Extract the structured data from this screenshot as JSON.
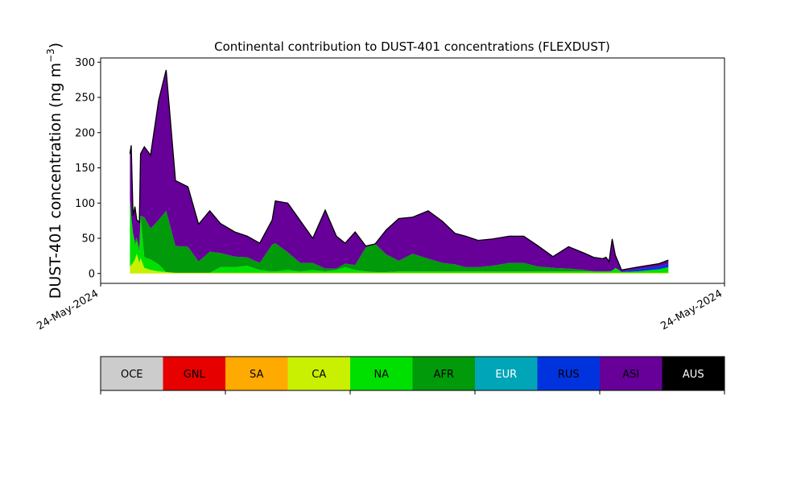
{
  "chart_data": {
    "type": "area",
    "title": "Continental contribution to DUST-401 concentrations (FLEXDUST)",
    "ylabel": "DUST-401 concentration (ng m",
    "ylabel_sup": "−3",
    "ylabel_close": ")",
    "ylim": [
      -14,
      306
    ],
    "yticks": [
      0,
      50,
      100,
      150,
      200,
      250,
      300
    ],
    "xticks": [
      {
        "label": "24-May-2024",
        "t": 0
      },
      {
        "label": "24-May-2024",
        "t": 1
      }
    ],
    "x": [
      0.047,
      0.049,
      0.052,
      0.055,
      0.058,
      0.062,
      0.064,
      0.07,
      0.08,
      0.093,
      0.105,
      0.12,
      0.14,
      0.157,
      0.175,
      0.192,
      0.215,
      0.235,
      0.255,
      0.275,
      0.28,
      0.3,
      0.32,
      0.34,
      0.36,
      0.378,
      0.392,
      0.408,
      0.425,
      0.44,
      0.458,
      0.478,
      0.5,
      0.525,
      0.548,
      0.568,
      0.585,
      0.605,
      0.628,
      0.655,
      0.678,
      0.7,
      0.725,
      0.75,
      0.775,
      0.79,
      0.805,
      0.81,
      0.815,
      0.82,
      0.825,
      0.835,
      0.86,
      0.895,
      0.91
    ],
    "series": [
      {
        "name": "CA",
        "color": "#c8f000",
        "values": [
          10,
          12,
          15,
          20,
          28,
          15,
          22,
          8,
          5,
          3,
          2,
          1,
          1,
          1,
          1,
          1,
          1,
          1,
          1,
          1,
          1,
          1,
          1,
          1,
          1,
          1,
          1,
          1,
          1,
          1,
          1,
          1,
          1,
          1,
          1,
          1,
          1,
          1,
          1,
          1,
          1,
          1,
          1,
          1,
          1,
          1,
          1,
          1,
          1,
          1,
          1,
          1,
          1,
          1,
          1
        ]
      },
      {
        "name": "NA",
        "color": "#00e000",
        "values": [
          95,
          70,
          42,
          20,
          18,
          15,
          60,
          15,
          15,
          10,
          0,
          0,
          0,
          0,
          0,
          8,
          8,
          10,
          4,
          2,
          2,
          4,
          2,
          4,
          2,
          4,
          8,
          4,
          2,
          1,
          1,
          2,
          2,
          2,
          2,
          2,
          2,
          2,
          2,
          2,
          2,
          2,
          2,
          2,
          2,
          2,
          2,
          2,
          2,
          3,
          7,
          1,
          2,
          5,
          8
        ]
      },
      {
        "name": "AFR",
        "color": "#009a0a",
        "values": [
          0,
          0,
          0,
          5,
          5,
          5,
          0,
          57,
          44,
          63,
          87,
          38,
          37,
          16,
          30,
          20,
          15,
          12,
          10,
          38,
          40,
          25,
          12,
          10,
          4,
          2,
          5,
          7,
          34,
          40,
          25,
          15,
          25,
          18,
          12,
          10,
          6,
          6,
          8,
          12,
          12,
          7,
          5,
          4,
          2,
          0,
          0,
          0,
          0,
          0,
          0,
          0,
          0,
          0,
          0
        ]
      },
      {
        "name": "RUS",
        "color": "#0033dd",
        "values": [
          0,
          0,
          0,
          0,
          0,
          0,
          0,
          0,
          0,
          0,
          0,
          0,
          0,
          0,
          0,
          0,
          0,
          0,
          0,
          0,
          0,
          0,
          0,
          0,
          0,
          0,
          0,
          0,
          0,
          0,
          0,
          0,
          0,
          0,
          0,
          0,
          0,
          0,
          0,
          0,
          0,
          0,
          0,
          0,
          0,
          0,
          0,
          0,
          0,
          0,
          0,
          1,
          3,
          4,
          5
        ]
      },
      {
        "name": "ASI",
        "color": "#660099",
        "values": [
          65,
          100,
          25,
          50,
          25,
          38,
          88,
          100,
          104,
          170,
          200,
          93,
          85,
          53,
          58,
          42,
          35,
          30,
          28,
          35,
          60,
          70,
          60,
          35,
          83,
          46,
          29,
          47,
          2,
          0,
          35,
          60,
          52,
          68,
          59,
          44,
          44,
          38,
          38,
          38,
          38,
          30,
          16,
          31,
          24,
          20,
          18,
          20,
          14,
          45,
          18,
          2,
          3,
          4,
          5
        ]
      }
    ],
    "legend": {
      "placement": "bottom",
      "entries": [
        {
          "label": "OCE",
          "color": "#cccccc",
          "text_color": "#000000"
        },
        {
          "label": "GNL",
          "color": "#e60000",
          "text_color": "#000000"
        },
        {
          "label": "SA",
          "color": "#ffaa00",
          "text_color": "#000000"
        },
        {
          "label": "CA",
          "color": "#c8f000",
          "text_color": "#000000"
        },
        {
          "label": "NA",
          "color": "#00e000",
          "text_color": "#000000"
        },
        {
          "label": "AFR",
          "color": "#009a0a",
          "text_color": "#000000"
        },
        {
          "label": "EUR",
          "color": "#00a6b8",
          "text_color": "#ffffff"
        },
        {
          "label": "RUS",
          "color": "#0033dd",
          "text_color": "#000000"
        },
        {
          "label": "ASI",
          "color": "#660099",
          "text_color": "#000000"
        },
        {
          "label": "AUS",
          "color": "#000000",
          "text_color": "#ffffff"
        }
      ]
    },
    "grid": false
  }
}
